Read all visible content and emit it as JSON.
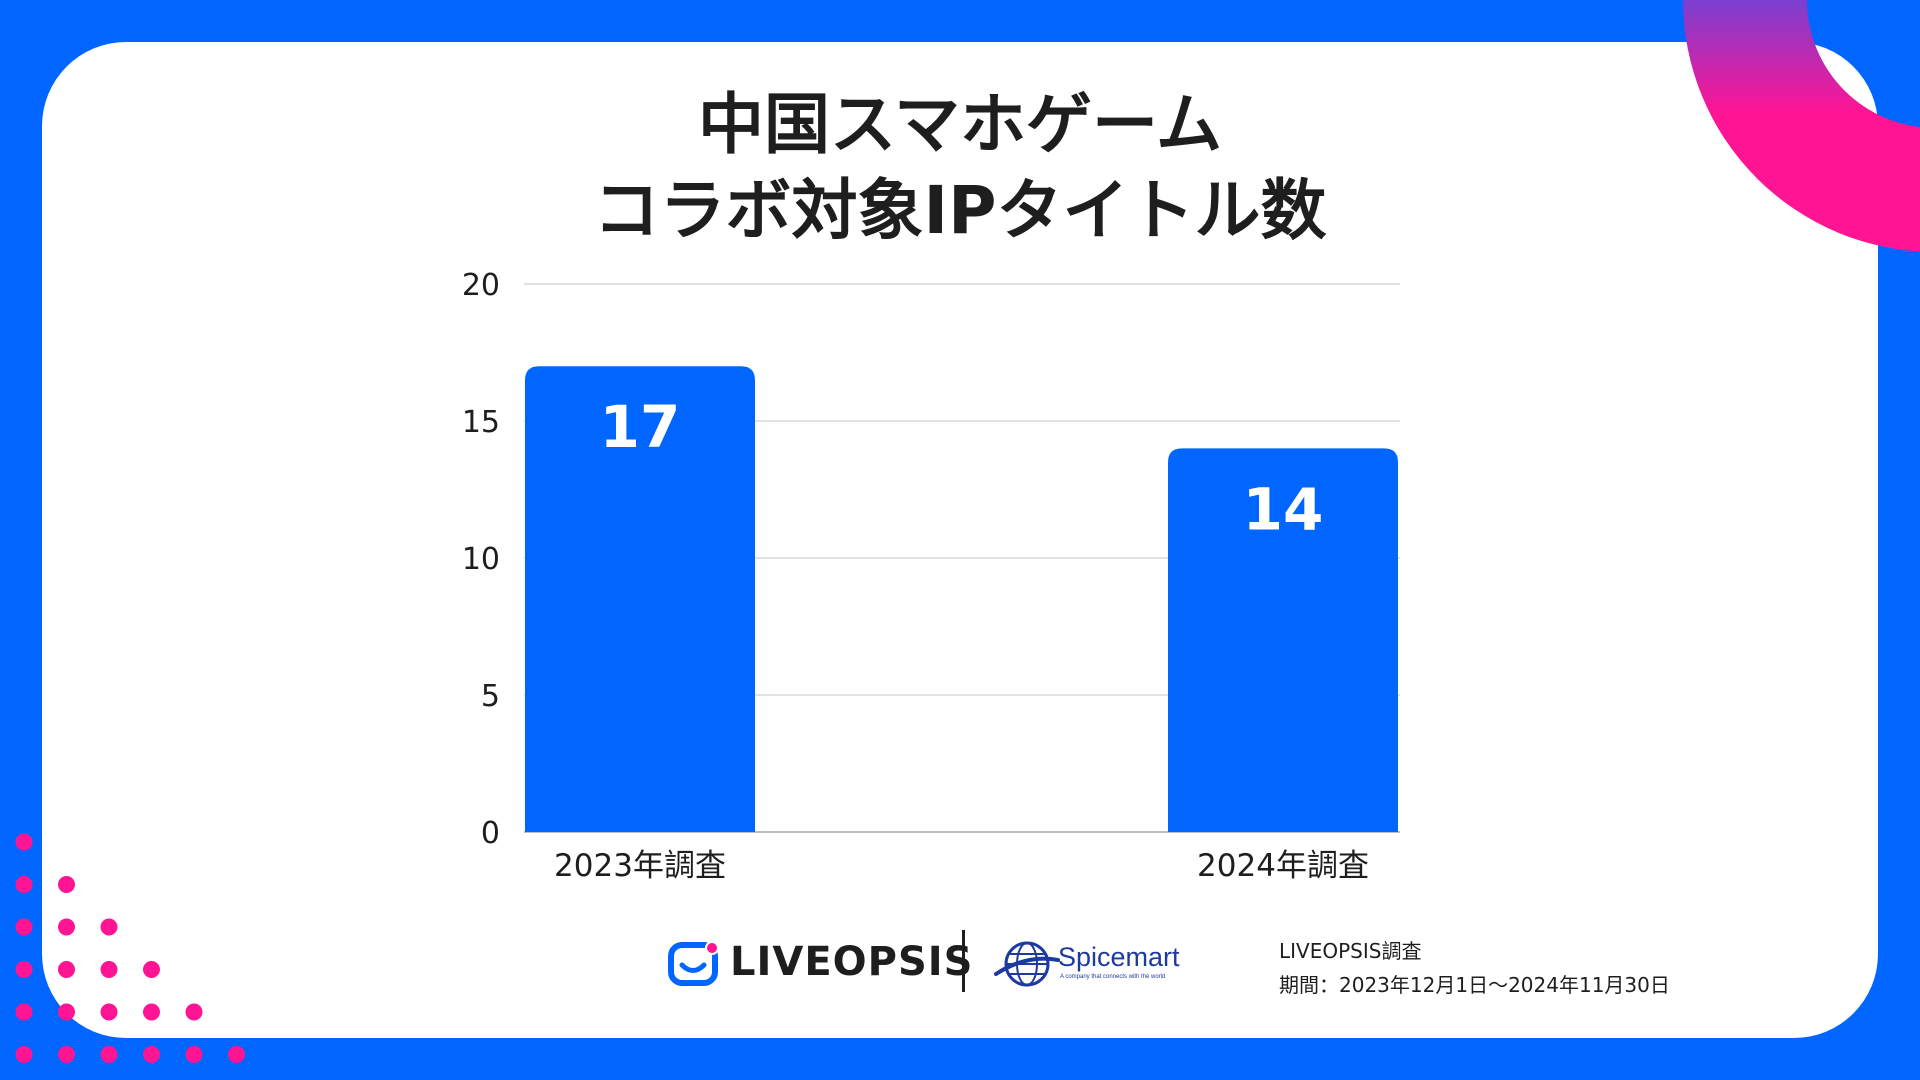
{
  "colors": {
    "background": "#0066ff",
    "card": "#ffffff",
    "bar": "#0066ff",
    "accent_pink": "#ff1493",
    "accent_purple": "#7b3fd0",
    "text": "#1e1e1e"
  },
  "chart_data": {
    "type": "bar",
    "title_lines": [
      "中国スマホゲーム",
      "コラボ対象IPタイトル数"
    ],
    "categories": [
      "2023年調査",
      "2024年調査"
    ],
    "values": [
      17,
      14
    ],
    "value_labels": [
      "17",
      "14"
    ],
    "ylim": [
      0,
      20
    ],
    "yticks": [
      "0",
      "5",
      "10",
      "15",
      "20"
    ],
    "xlabel": "",
    "ylabel": "",
    "grid": true,
    "legend": "none"
  },
  "footer": {
    "liveopsis_logo": "LIVEOPSIS",
    "spicemart_logo": "Spicemart",
    "spicemart_tagline": "A company that connects with the world",
    "source_line1": "LIVEOPSIS調査",
    "source_line2": "期間：2023年12月1日〜2024年11月30日"
  },
  "decorations": {
    "dots_icon": "pink-dot-grid",
    "corner_icon": "pink-arc-ring"
  }
}
